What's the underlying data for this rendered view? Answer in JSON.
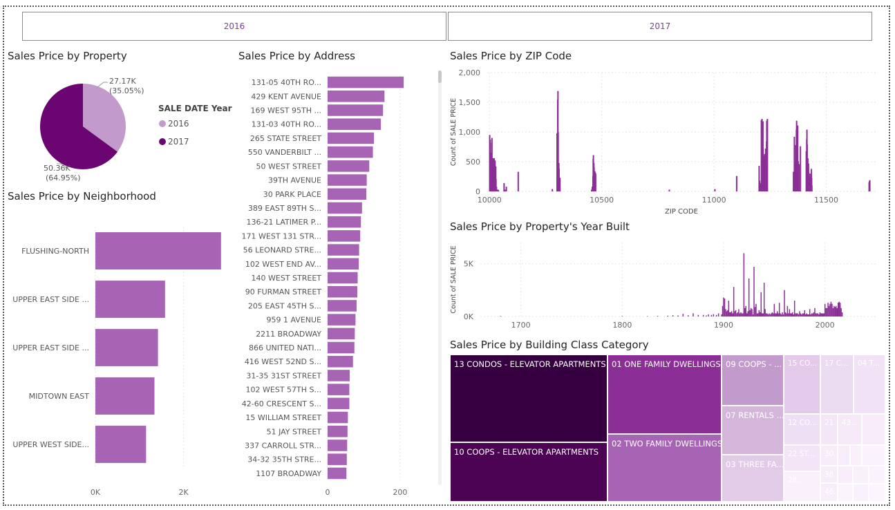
{
  "slicer": {
    "buttons": [
      "2016",
      "2017"
    ]
  },
  "colors": {
    "series_2016": "#c29bcc",
    "series_2017": "#6a0572",
    "bar": "#a864b4",
    "line": "#8b2f97",
    "grid": "#e6e6e6"
  },
  "titles": {
    "property": "Sales Price by Property",
    "address": "Sales Price by Address",
    "zip": "Sales Price by ZIP Code",
    "neighborhood": "Sales Price by Neighborhood",
    "yearbuilt": "Sales Price by Property's Year Built",
    "building": "Sales Price by Building Class Category"
  },
  "chart_data": [
    {
      "id": "pie",
      "type": "pie",
      "title": "Sales Price by Property",
      "legend_title": "SALE DATE Year",
      "slices": [
        {
          "name": "2016",
          "value": 27170,
          "label": "27.17K",
          "pct": "(35.05%)"
        },
        {
          "name": "2017",
          "value": 50360,
          "label": "50.36K",
          "pct": "(64.95%)"
        }
      ]
    },
    {
      "id": "neighborhood",
      "type": "bar",
      "orientation": "horizontal",
      "title": "Sales Price by Neighborhood",
      "categories": [
        "FLUSHING-NORTH",
        "UPPER EAST SIDE ...",
        "UPPER EAST SIDE ...",
        "MIDTOWN EAST",
        "UPPER WEST SIDE..."
      ],
      "values": [
        2850,
        1580,
        1420,
        1340,
        1150
      ],
      "xlim": [
        0,
        2900
      ],
      "xticks": [
        {
          "v": 0,
          "label": "0K"
        },
        {
          "v": 2000,
          "label": "2K"
        }
      ]
    },
    {
      "id": "address",
      "type": "bar",
      "orientation": "horizontal",
      "title": "Sales Price by Address",
      "categories": [
        "131-05 40TH RO...",
        "429 KENT AVENUE",
        "169 WEST 95TH ...",
        "131-03 40TH RO...",
        "265 STATE STREET",
        "550 VANDERBILT ...",
        "50 WEST STREET",
        "39TH AVENUE",
        "30 PARK PLACE",
        "389 EAST 89TH S...",
        "136-21 LATIMER P...",
        "171 WEST 131 STR...",
        "56 LEONARD STRE...",
        "102 WEST END AV...",
        "140 WEST STREET",
        "90 FURMAN STREET",
        "205 EAST 45TH S...",
        "959 1 AVENUE",
        "2211 BROADWAY",
        "866 UNITED NATI...",
        "416 WEST 52ND S...",
        "31-35 31ST STREET",
        "102 WEST 57TH S...",
        "42-60 CRESCENT S...",
        "15 WILLIAM STREET",
        "51 JAY STREET",
        "337 CARROLL STR...",
        "34-32 35TH STRE...",
        "1107 BROADWAY"
      ],
      "values": [
        210,
        157,
        153,
        147,
        128,
        125,
        115,
        108,
        107,
        95,
        92,
        90,
        87,
        86,
        83,
        82,
        80,
        77,
        75,
        74,
        70,
        61,
        60,
        60,
        56,
        55,
        54,
        53,
        52
      ],
      "xlim": [
        0,
        225
      ],
      "xticks": [
        {
          "v": 0,
          "label": "0"
        },
        {
          "v": 200,
          "label": "200"
        }
      ]
    },
    {
      "id": "zip",
      "type": "bar",
      "title": "Sales Price by ZIP Code",
      "xlabel": "ZIP CODE",
      "ylabel": "Count of SALE PRICE",
      "xlim": [
        9990,
        11720
      ],
      "ylim": [
        0,
        2000
      ],
      "xticks": [
        {
          "v": 10000,
          "label": "10000"
        },
        {
          "v": 10500,
          "label": "10500"
        },
        {
          "v": 11000,
          "label": "11000"
        },
        {
          "v": 11500,
          "label": "11500"
        }
      ],
      "yticks": [
        {
          "v": 0,
          "label": "0"
        },
        {
          "v": 500,
          "label": "500"
        },
        {
          "v": 1000,
          "label": "1,000"
        },
        {
          "v": 1500,
          "label": "1,500"
        },
        {
          "v": 2000,
          "label": "2,000"
        }
      ],
      "x": [
        10001,
        10002,
        10003,
        10004,
        10005,
        10006,
        10007,
        10009,
        10010,
        10011,
        10012,
        10013,
        10014,
        10016,
        10017,
        10018,
        10019,
        10021,
        10022,
        10023,
        10024,
        10025,
        10026,
        10027,
        10028,
        10029,
        10031,
        10033,
        10036,
        10038,
        10040,
        10065,
        10069,
        10075,
        10128,
        10280,
        10301,
        10302,
        10304,
        10305,
        10306,
        10307,
        10309,
        10310,
        10312,
        10314,
        10455,
        10456,
        10458,
        10460,
        10461,
        10462,
        10463,
        10465,
        10466,
        10467,
        10469,
        10470,
        10471,
        10473,
        10801,
        11004,
        11101,
        11201,
        11203,
        11205,
        11206,
        11207,
        11208,
        11209,
        11210,
        11211,
        11212,
        11213,
        11214,
        11215,
        11216,
        11217,
        11218,
        11219,
        11220,
        11221,
        11222,
        11223,
        11224,
        11225,
        11226,
        11229,
        11230,
        11231,
        11233,
        11234,
        11235,
        11236,
        11238,
        11354,
        11355,
        11356,
        11357,
        11358,
        11360,
        11361,
        11364,
        11365,
        11366,
        11367,
        11368,
        11369,
        11370,
        11372,
        11373,
        11374,
        11375,
        11377,
        11378,
        11379,
        11385,
        11411,
        11412,
        11413,
        11414,
        11415,
        11416,
        11417,
        11418,
        11419,
        11420,
        11421,
        11422,
        11423,
        11426,
        11427,
        11428,
        11429,
        11432,
        11433,
        11434,
        11435,
        11436,
        11691,
        11692,
        11693,
        11694
      ],
      "values": [
        950,
        720,
        870,
        820,
        560,
        350,
        280,
        620,
        650,
        900,
        400,
        380,
        300,
        560,
        150,
        200,
        480,
        560,
        440,
        380,
        500,
        520,
        170,
        150,
        420,
        210,
        80,
        30,
        20,
        30,
        20,
        140,
        30,
        80,
        330,
        40,
        980,
        260,
        1550,
        1690,
        1000,
        430,
        480,
        380,
        150,
        230,
        30,
        20,
        80,
        30,
        260,
        550,
        610,
        480,
        400,
        130,
        340,
        70,
        320,
        300,
        30,
        40,
        260,
        430,
        180,
        140,
        60,
        30,
        90,
        30,
        120,
        1200,
        1070,
        680,
        1220,
        770,
        580,
        840,
        1180,
        720,
        450,
        580,
        600,
        560,
        300,
        550,
        630,
        540,
        720,
        330,
        200,
        840,
        1190,
        770,
        1220,
        330,
        90,
        250,
        130,
        920,
        500,
        350,
        780,
        560,
        300,
        1040,
        1190,
        690,
        640,
        380,
        1110,
        300,
        510,
        330,
        450,
        460,
        760,
        680,
        540,
        880,
        1040,
        790,
        500,
        530,
        560,
        320,
        360,
        470,
        320,
        170,
        240,
        100,
        300,
        230,
        120,
        200,
        380,
        230,
        100,
        150,
        170,
        90,
        190
      ]
    },
    {
      "id": "yearbuilt",
      "type": "bar",
      "title": "Sales Price by Property's Year Built",
      "xlabel": "",
      "ylabel": "Count of SALE PRICE",
      "xlim": [
        1660,
        2050
      ],
      "ylim": [
        0,
        7000
      ],
      "xticks": [
        {
          "v": 1700,
          "label": "1700"
        },
        {
          "v": 1800,
          "label": "1800"
        },
        {
          "v": 1900,
          "label": "1900"
        },
        {
          "v": 2000,
          "label": "2000"
        }
      ],
      "yticks": [
        {
          "v": 0,
          "label": "0K"
        },
        {
          "v": 5000,
          "label": "5K"
        }
      ],
      "x": [
        1680,
        1800,
        1825,
        1835,
        1845,
        1850,
        1855,
        1860,
        1865,
        1870,
        1875,
        1880,
        1883,
        1885,
        1888,
        1890,
        1893,
        1895,
        1898,
        1899,
        1900,
        1901,
        1902,
        1903,
        1904,
        1905,
        1906,
        1907,
        1908,
        1909,
        1910,
        1911,
        1912,
        1913,
        1914,
        1915,
        1916,
        1917,
        1918,
        1919,
        1920,
        1921,
        1922,
        1923,
        1924,
        1925,
        1926,
        1927,
        1928,
        1929,
        1930,
        1931,
        1932,
        1933,
        1934,
        1935,
        1936,
        1937,
        1938,
        1939,
        1940,
        1941,
        1942,
        1943,
        1944,
        1945,
        1946,
        1947,
        1948,
        1949,
        1950,
        1951,
        1952,
        1953,
        1954,
        1955,
        1956,
        1957,
        1958,
        1959,
        1960,
        1961,
        1962,
        1963,
        1964,
        1965,
        1966,
        1967,
        1968,
        1969,
        1970,
        1971,
        1972,
        1973,
        1974,
        1975,
        1976,
        1977,
        1978,
        1979,
        1980,
        1981,
        1982,
        1983,
        1984,
        1985,
        1986,
        1987,
        1988,
        1989,
        1990,
        1991,
        1992,
        1993,
        1994,
        1995,
        1996,
        1997,
        1998,
        1999,
        2000,
        2001,
        2002,
        2003,
        2004,
        2005,
        2006,
        2007,
        2008,
        2009,
        2010,
        2011,
        2012,
        2013,
        2014,
        2015,
        2016,
        2017
      ],
      "values": [
        50,
        40,
        40,
        60,
        80,
        120,
        100,
        250,
        120,
        300,
        150,
        150,
        100,
        200,
        150,
        220,
        150,
        300,
        200,
        1000,
        1800,
        1700,
        700,
        500,
        600,
        1500,
        400,
        400,
        500,
        300,
        2800,
        500,
        600,
        300,
        400,
        700,
        300,
        400,
        300,
        300,
        6000,
        800,
        1000,
        300,
        500,
        3600,
        600,
        800,
        700,
        200,
        4700,
        900,
        1200,
        300,
        300,
        600,
        400,
        2300,
        300,
        300,
        3200,
        700,
        300,
        300,
        200,
        300,
        200,
        300,
        400,
        300,
        1200,
        300,
        300,
        500,
        300,
        1300,
        300,
        200,
        400,
        200,
        2500,
        400,
        300,
        1000,
        300,
        700,
        300,
        300,
        400,
        200,
        1500,
        300,
        300,
        300,
        200,
        500,
        300,
        200,
        300,
        300,
        600,
        200,
        300,
        200,
        200,
        700,
        200,
        300,
        300,
        400,
        800,
        300,
        300,
        300,
        200,
        400,
        300,
        300,
        300,
        300,
        1200,
        800,
        800,
        1300,
        1000,
        1200,
        1400,
        1200,
        800,
        1000,
        900,
        1000,
        800,
        1300,
        1400,
        1300,
        800,
        400
      ]
    },
    {
      "id": "building",
      "type": "treemap",
      "title": "Sales Price by Building Class Category",
      "cells": [
        {
          "label": "13 CONDOS - ELEVATOR APARTMENTS",
          "color": "#360040"
        },
        {
          "label": "10 COOPS - ELEVATOR APARTMENTS",
          "color": "#4c0354"
        },
        {
          "label": "01 ONE FAMILY DWELLINGS",
          "color": "#8b2f97"
        },
        {
          "label": "02 TWO FAMILY DWELLINGS",
          "color": "#a864b4"
        },
        {
          "label": "09 COOPS - ...",
          "color": "#c29bcc"
        },
        {
          "label": "07 RENTALS ...",
          "color": "#d3b6da"
        },
        {
          "label": "03 THREE FA...",
          "color": "#e2cbe7"
        },
        {
          "label": "15 CO...",
          "color": "#e3c9ea"
        },
        {
          "label": "17 C...",
          "color": "#ecdcf1"
        },
        {
          "label": "04 T...",
          "color": "#f1e2f6"
        },
        {
          "label": "12 CO...",
          "color": "#efdff4"
        },
        {
          "label": "21...",
          "color": "#f3e6f7"
        },
        {
          "label": "43...",
          "color": "#f6eaf9"
        },
        {
          "label": "22 ST...",
          "color": "#f3e4f7"
        },
        {
          "label": "30...",
          "color": "#f7ecfa"
        },
        {
          "label": "38...",
          "color": "#f7ecfa"
        },
        {
          "label": "46...",
          "color": "#f8eefb"
        },
        {
          "label": "28...",
          "color": "#f9f0fb"
        },
        {
          "label": "",
          "color": "#f7eaf9"
        },
        {
          "label": "",
          "color": "#f8edfa"
        },
        {
          "label": "",
          "color": "#f9f0fb"
        },
        {
          "label": "",
          "color": "#faf2fc"
        },
        {
          "label": "",
          "color": "#f8eefb"
        },
        {
          "label": "",
          "color": "#f9f0fb"
        },
        {
          "label": "",
          "color": "#faf2fc"
        },
        {
          "label": "",
          "color": "#fbf4fc"
        },
        {
          "label": "",
          "color": "#f9f1fb"
        },
        {
          "label": "",
          "color": "#fbf5fd"
        }
      ]
    }
  ]
}
